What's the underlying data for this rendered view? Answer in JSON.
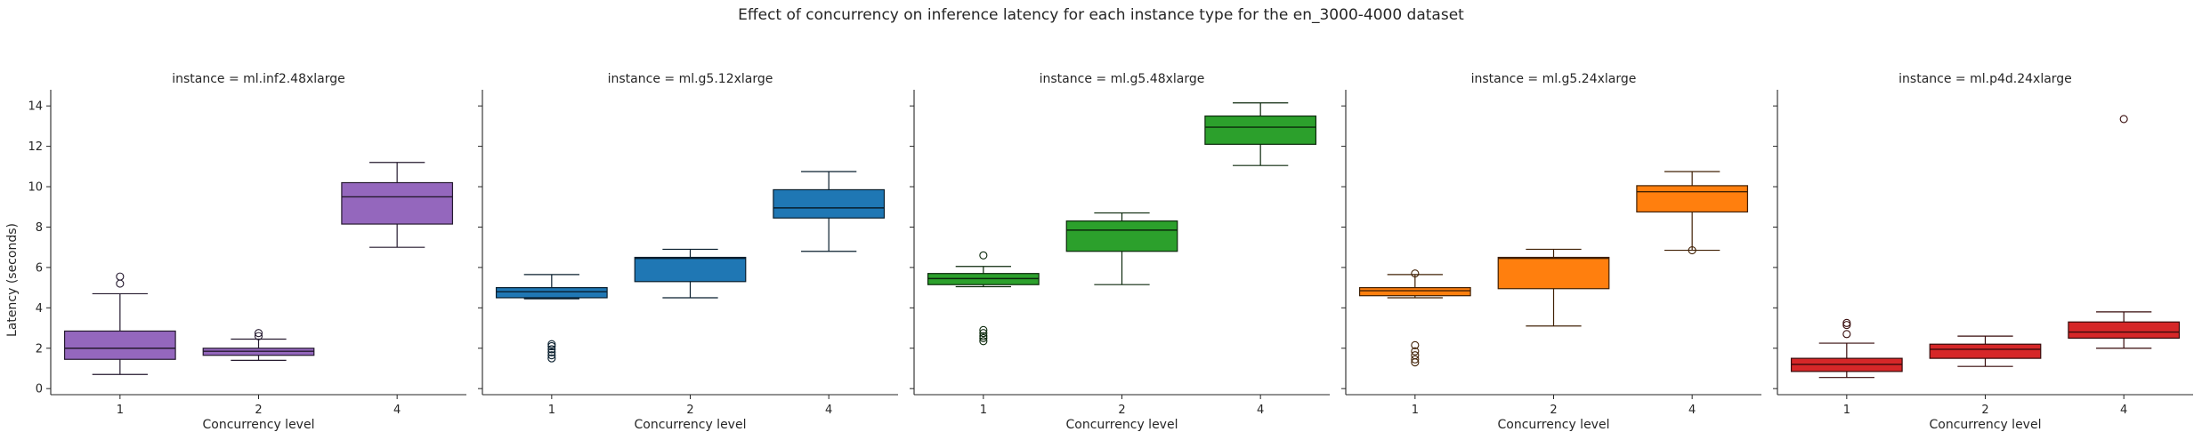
{
  "chart_data": {
    "type": "box",
    "title": "Effect of concurrency on inference latency for each instance type for the en_3000-4000 dataset",
    "xlabel": "Concurrency level",
    "ylabel": "Latency (seconds)",
    "ylim": [
      -0.3,
      14.8
    ],
    "yticks": [
      0,
      2,
      4,
      6,
      8,
      10,
      12,
      14
    ],
    "categories": [
      "1",
      "2",
      "4"
    ],
    "grid": false,
    "sharey": true,
    "panels": [
      {
        "title": "instance = ml.inf2.48xlarge",
        "color": "#9467bd",
        "boxes": [
          {
            "category": "1",
            "min": 0.7,
            "q1": 1.45,
            "median": 2.0,
            "q3": 2.85,
            "max": 4.7,
            "outliers": [
              5.2,
              5.55
            ]
          },
          {
            "category": "2",
            "min": 1.4,
            "q1": 1.65,
            "median": 1.85,
            "q3": 2.0,
            "max": 2.45,
            "outliers": [
              2.6,
              2.75
            ]
          },
          {
            "category": "4",
            "min": 7.0,
            "q1": 8.15,
            "median": 9.5,
            "q3": 10.2,
            "max": 11.2,
            "outliers": []
          }
        ]
      },
      {
        "title": "instance = ml.g5.12xlarge",
        "color": "#1f77b4",
        "boxes": [
          {
            "category": "1",
            "min": 4.45,
            "q1": 4.5,
            "median": 4.8,
            "q3": 5.0,
            "max": 5.65,
            "outliers": [
              1.5,
              1.65,
              1.8,
              1.95,
              2.1,
              2.2
            ]
          },
          {
            "category": "2",
            "min": 4.5,
            "q1": 5.3,
            "median": 6.45,
            "q3": 6.5,
            "max": 6.9,
            "outliers": []
          },
          {
            "category": "4",
            "min": 6.8,
            "q1": 8.45,
            "median": 8.95,
            "q3": 9.85,
            "max": 10.75,
            "outliers": []
          }
        ]
      },
      {
        "title": "instance = ml.g5.48xlarge",
        "color": "#2ca02c",
        "boxes": [
          {
            "category": "1",
            "min": 5.05,
            "q1": 5.15,
            "median": 5.45,
            "q3": 5.7,
            "max": 6.05,
            "outliers": [
              6.6,
              2.35,
              2.5,
              2.6,
              2.75,
              2.9
            ]
          },
          {
            "category": "2",
            "min": 5.15,
            "q1": 6.8,
            "median": 7.85,
            "q3": 8.3,
            "max": 8.7,
            "outliers": []
          },
          {
            "category": "4",
            "min": 11.05,
            "q1": 12.1,
            "median": 12.95,
            "q3": 13.5,
            "max": 14.15,
            "outliers": []
          }
        ]
      },
      {
        "title": "instance = ml.g5.24xlarge",
        "color": "#ff7f0e",
        "boxes": [
          {
            "category": "1",
            "min": 4.5,
            "q1": 4.6,
            "median": 4.85,
            "q3": 5.0,
            "max": 5.65,
            "outliers": [
              5.7,
              1.3,
              1.45,
              1.65,
              1.85,
              2.15
            ]
          },
          {
            "category": "2",
            "min": 3.1,
            "q1": 4.95,
            "median": 6.45,
            "q3": 6.5,
            "max": 6.9,
            "outliers": []
          },
          {
            "category": "4",
            "min": 6.85,
            "q1": 8.75,
            "median": 9.75,
            "q3": 10.05,
            "max": 10.75,
            "outliers": [
              6.85
            ]
          }
        ]
      },
      {
        "title": "instance = ml.p4d.24xlarge",
        "color": "#d62728",
        "boxes": [
          {
            "category": "1",
            "min": 0.55,
            "q1": 0.85,
            "median": 1.2,
            "q3": 1.5,
            "max": 2.25,
            "outliers": [
              2.7,
              3.15,
              3.25
            ]
          },
          {
            "category": "2",
            "min": 1.1,
            "q1": 1.5,
            "median": 1.95,
            "q3": 2.2,
            "max": 2.6,
            "outliers": []
          },
          {
            "category": "4",
            "min": 2.0,
            "q1": 2.5,
            "median": 2.8,
            "q3": 3.3,
            "max": 3.8,
            "outliers": [
              13.35
            ]
          }
        ]
      }
    ]
  }
}
